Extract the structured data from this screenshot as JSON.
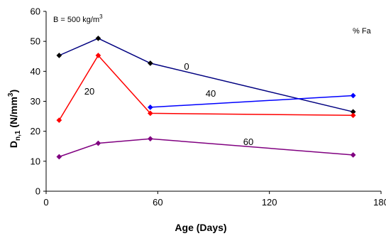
{
  "chart_data": {
    "type": "line",
    "title": "",
    "xlabel": "Age (Days)",
    "ylabel": "D",
    "ylabel_sub": "n,1",
    "ylabel_unit_open": " (N/mm",
    "ylabel_unit_sup": "3",
    "ylabel_unit_close": ")",
    "xlim": [
      0,
      180
    ],
    "ylim": [
      0,
      60
    ],
    "xticks": [
      0,
      60,
      120,
      180
    ],
    "yticks": [
      0,
      10,
      20,
      30,
      40,
      50,
      60
    ],
    "grid": false,
    "annotations": {
      "b_text": "B = 500 kg/m",
      "b_sup": "3",
      "fa_text": "% Fa"
    },
    "series": [
      {
        "name": "0",
        "color": "#000080",
        "marker_color": "#000000",
        "x": [
          7,
          28,
          56,
          165
        ],
        "y": [
          45.3,
          51.0,
          42.7,
          26.5
        ]
      },
      {
        "name": "20",
        "color": "#ff0000",
        "marker_color": "#ff0000",
        "x": [
          7,
          28,
          56,
          165
        ],
        "y": [
          23.7,
          45.3,
          26.0,
          25.3
        ]
      },
      {
        "name": "40",
        "color": "#0000ff",
        "marker_color": "#0000ff",
        "x": [
          56,
          165
        ],
        "y": [
          28.0,
          31.9
        ]
      },
      {
        "name": "60",
        "color": "#800080",
        "marker_color": "#800080",
        "x": [
          7,
          28,
          56,
          165
        ],
        "y": [
          11.5,
          16.0,
          17.5,
          12.1
        ]
      }
    ]
  }
}
